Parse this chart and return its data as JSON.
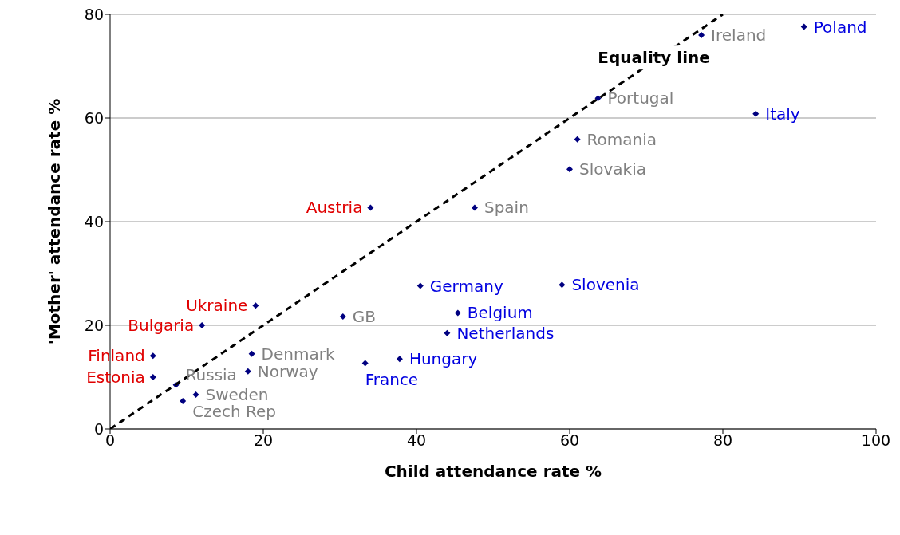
{
  "chart_data": {
    "type": "scatter",
    "xlabel": "Child attendance rate %",
    "ylabel": "'Mother' attendance rate %",
    "xlim": [
      0,
      100
    ],
    "ylim": [
      0,
      80
    ],
    "xticks": [
      0,
      20,
      40,
      60,
      80,
      100
    ],
    "yticks": [
      0,
      20,
      40,
      60,
      80
    ],
    "grid": "y",
    "marker": "diamond",
    "legend": false,
    "series": [
      {
        "color": "#000080",
        "x": [
          34.0,
          19.0,
          12.0,
          5.6,
          5.6
        ],
        "values": [
          42.7,
          23.8,
          20.0,
          14.1,
          10.0
        ],
        "value_labels": [
          "Austria",
          "Ukraine",
          "Bulgaria",
          "Finland",
          "Estonia"
        ]
      },
      {
        "color": "#000080",
        "x": [
          77.2,
          63.7,
          61.0,
          60.0,
          47.6,
          30.4,
          18.5,
          18.0,
          8.6,
          11.2,
          9.5
        ],
        "values": [
          76.0,
          63.8,
          55.9,
          50.1,
          42.7,
          21.7,
          14.5,
          11.1,
          8.5,
          6.6,
          5.4
        ],
        "value_labels": [
          "Ireland",
          "Portugal",
          "Romania",
          "Slovakia",
          "Spain",
          "GB",
          "Denmark",
          "Norway",
          "Russia",
          "Sweden",
          "Czech Rep"
        ]
      },
      {
        "color": "#000080",
        "x": [
          90.6,
          84.3,
          40.5,
          59.0,
          45.4,
          44.0,
          37.8,
          33.3
        ],
        "values": [
          77.6,
          60.8,
          27.6,
          27.8,
          22.4,
          18.5,
          13.5,
          12.7
        ],
        "value_labels": [
          "Poland",
          "Italy",
          "Germany",
          "Slovenia",
          "Belgium",
          "Netherlands",
          "Hungary",
          "France"
        ]
      },
      {
        "type": "line",
        "color": "#000000",
        "line_style": "dashed",
        "marker": "none",
        "x": [
          0,
          80
        ],
        "values": [
          0,
          80
        ]
      }
    ],
    "annotations": [
      "Equality line"
    ]
  }
}
